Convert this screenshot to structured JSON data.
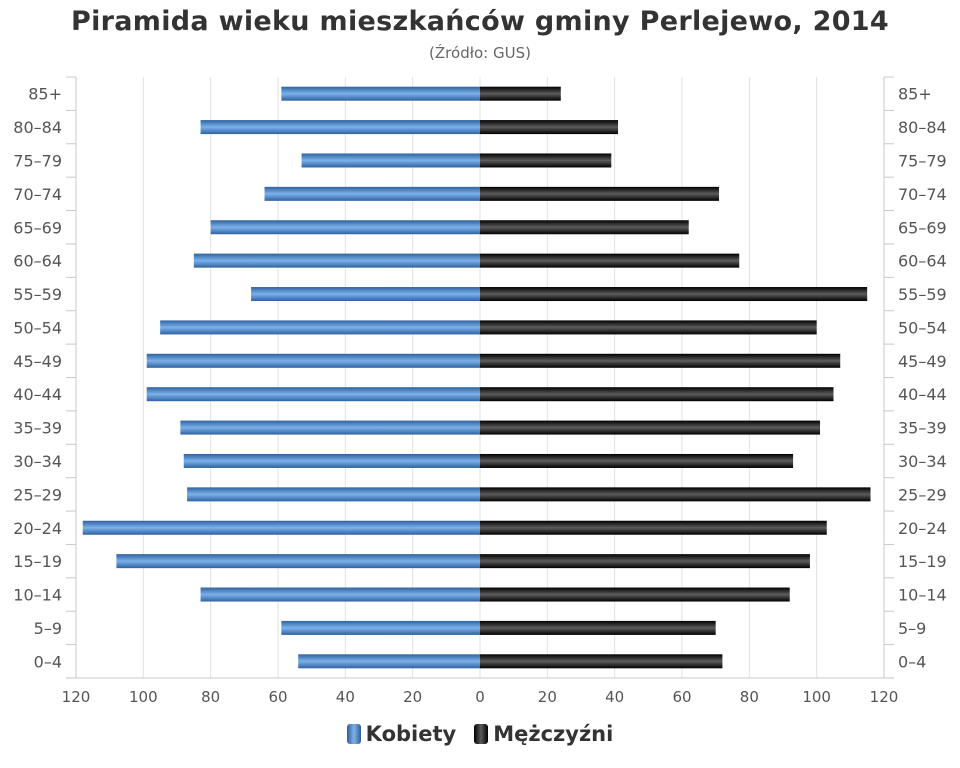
{
  "colors": {
    "women_dark": "#2f62a0",
    "women_light": "#7bb2ea",
    "men_dark": "#000000",
    "men_light": "#5c5c5c",
    "grid": "#e2e2e2",
    "text": "#555555"
  },
  "chart_data": {
    "type": "bar",
    "orientation": "horizontal",
    "title": "Piramida wieku mieszkańców gminy Perlejewo, 2014",
    "subtitle": "(Źródło: GUS)",
    "categories": [
      "85+",
      "80–84",
      "75–79",
      "70–74",
      "65–69",
      "60–64",
      "55–59",
      "50–54",
      "45–49",
      "40–44",
      "35–39",
      "30–34",
      "25–29",
      "20–24",
      "15–19",
      "10–14",
      "5–9",
      "0–4"
    ],
    "series": [
      {
        "name": "Kobiety",
        "side": "left",
        "values": [
          59,
          83,
          53,
          64,
          80,
          85,
          68,
          95,
          99,
          99,
          89,
          88,
          87,
          118,
          108,
          83,
          59,
          54
        ]
      },
      {
        "name": "Mężczyźni",
        "side": "right",
        "values": [
          24,
          41,
          39,
          71,
          62,
          77,
          115,
          100,
          107,
          105,
          101,
          93,
          116,
          103,
          98,
          92,
          70,
          72
        ]
      }
    ],
    "xlim": [
      -120,
      120
    ],
    "x_ticks": [
      "120",
      "100",
      "80",
      "60",
      "40",
      "20",
      "0",
      "20",
      "40",
      "60",
      "80",
      "100",
      "120"
    ],
    "grid": true,
    "legend": "bottom"
  }
}
